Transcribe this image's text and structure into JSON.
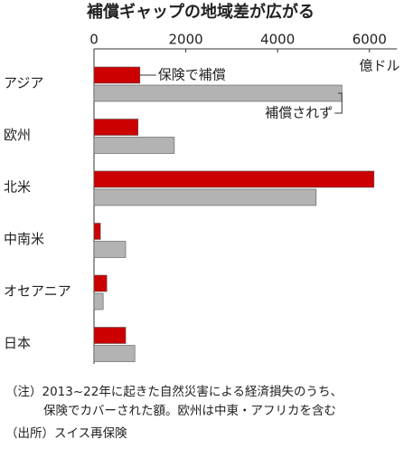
{
  "chart_data": {
    "type": "hbar",
    "title": "補償ギャップの地域差が広がる",
    "unit_label": "億ドル",
    "categories": [
      "アジア",
      "欧州",
      "北米",
      "中南米",
      "オセアニア",
      "日本"
    ],
    "series": [
      {
        "name": "保険で補償",
        "color": "#cc0000",
        "values": [
          1000,
          960,
          6100,
          140,
          280,
          690
        ]
      },
      {
        "name": "補償されず",
        "color": "#b3b3b3",
        "values": [
          5400,
          1750,
          4840,
          690,
          200,
          890
        ]
      }
    ],
    "xlim": [
      0,
      6600
    ],
    "xticks": [
      0,
      2000,
      4000,
      6000
    ],
    "notes": [
      "（注）2013~22年に起きた自然災害による経済損失のうち、",
      "保険でカバーされた額。欧州は中東・アフリカを含む"
    ],
    "source": "（出所）スイス再保険"
  }
}
